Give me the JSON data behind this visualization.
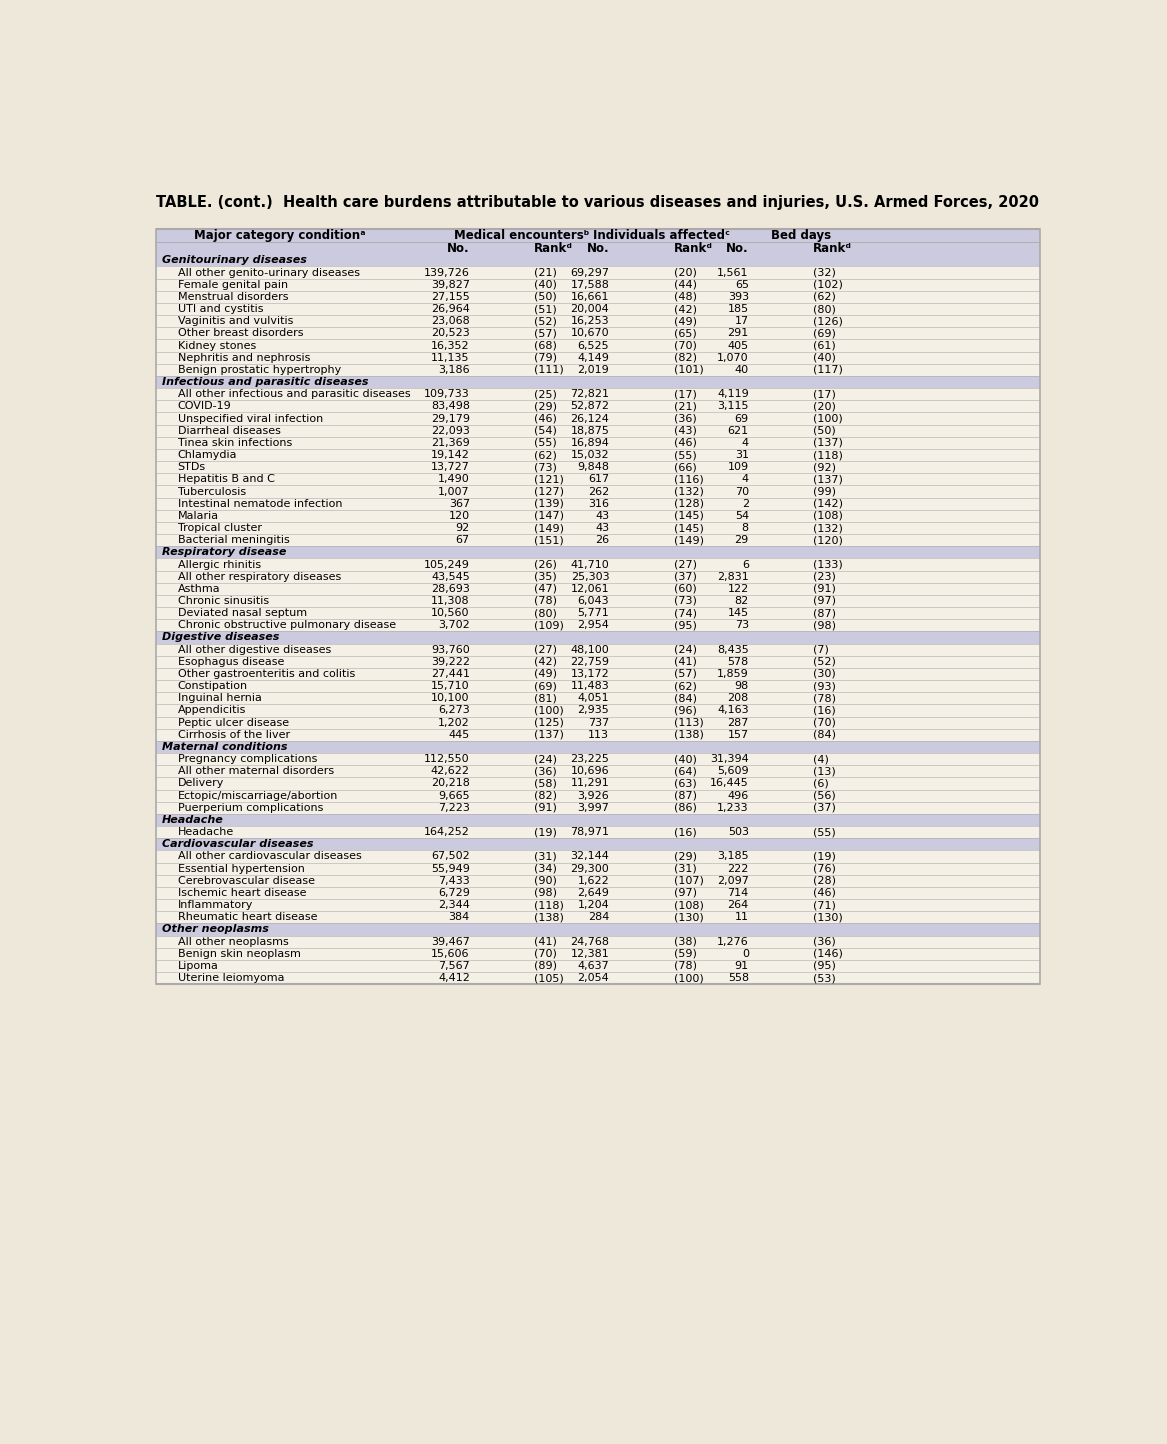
{
  "title": "TABLE. (cont.)  Health care burdens attributable to various diseases and injuries, U.S. Armed Forces, 2020",
  "sections": [
    {
      "header": "Genitourinary diseases",
      "rows": [
        [
          "All other genito-urinary diseases",
          "139,726",
          "(21)",
          "69,297",
          "(20)",
          "1,561",
          "(32)"
        ],
        [
          "Female genital pain",
          "39,827",
          "(40)",
          "17,588",
          "(44)",
          "65",
          "(102)"
        ],
        [
          "Menstrual disorders",
          "27,155",
          "(50)",
          "16,661",
          "(48)",
          "393",
          "(62)"
        ],
        [
          "UTI and cystitis",
          "26,964",
          "(51)",
          "20,004",
          "(42)",
          "185",
          "(80)"
        ],
        [
          "Vaginitis and vulvitis",
          "23,068",
          "(52)",
          "16,253",
          "(49)",
          "17",
          "(126)"
        ],
        [
          "Other breast disorders",
          "20,523",
          "(57)",
          "10,670",
          "(65)",
          "291",
          "(69)"
        ],
        [
          "Kidney stones",
          "16,352",
          "(68)",
          "6,525",
          "(70)",
          "405",
          "(61)"
        ],
        [
          "Nephritis and nephrosis",
          "11,135",
          "(79)",
          "4,149",
          "(82)",
          "1,070",
          "(40)"
        ],
        [
          "Benign prostatic hypertrophy",
          "3,186",
          "(111)",
          "2,019",
          "(101)",
          "40",
          "(117)"
        ]
      ]
    },
    {
      "header": "Infectious and parasitic diseases",
      "rows": [
        [
          "All other infectious and parasitic diseases",
          "109,733",
          "(25)",
          "72,821",
          "(17)",
          "4,119",
          "(17)"
        ],
        [
          "COVID-19",
          "83,498",
          "(29)",
          "52,872",
          "(21)",
          "3,115",
          "(20)"
        ],
        [
          "Unspecified viral infection",
          "29,179",
          "(46)",
          "26,124",
          "(36)",
          "69",
          "(100)"
        ],
        [
          "Diarrheal diseases",
          "22,093",
          "(54)",
          "18,875",
          "(43)",
          "621",
          "(50)"
        ],
        [
          "Tinea skin infections",
          "21,369",
          "(55)",
          "16,894",
          "(46)",
          "4",
          "(137)"
        ],
        [
          "Chlamydia",
          "19,142",
          "(62)",
          "15,032",
          "(55)",
          "31",
          "(118)"
        ],
        [
          "STDs",
          "13,727",
          "(73)",
          "9,848",
          "(66)",
          "109",
          "(92)"
        ],
        [
          "Hepatitis B and C",
          "1,490",
          "(121)",
          "617",
          "(116)",
          "4",
          "(137)"
        ],
        [
          "Tuberculosis",
          "1,007",
          "(127)",
          "262",
          "(132)",
          "70",
          "(99)"
        ],
        [
          "Intestinal nematode infection",
          "367",
          "(139)",
          "316",
          "(128)",
          "2",
          "(142)"
        ],
        [
          "Malaria",
          "120",
          "(147)",
          "43",
          "(145)",
          "54",
          "(108)"
        ],
        [
          "Tropical cluster",
          "92",
          "(149)",
          "43",
          "(145)",
          "8",
          "(132)"
        ],
        [
          "Bacterial meningitis",
          "67",
          "(151)",
          "26",
          "(149)",
          "29",
          "(120)"
        ]
      ]
    },
    {
      "header": "Respiratory disease",
      "rows": [
        [
          "Allergic rhinitis",
          "105,249",
          "(26)",
          "41,710",
          "(27)",
          "6",
          "(133)"
        ],
        [
          "All other respiratory diseases",
          "43,545",
          "(35)",
          "25,303",
          "(37)",
          "2,831",
          "(23)"
        ],
        [
          "Asthma",
          "28,693",
          "(47)",
          "12,061",
          "(60)",
          "122",
          "(91)"
        ],
        [
          "Chronic sinusitis",
          "11,308",
          "(78)",
          "6,043",
          "(73)",
          "82",
          "(97)"
        ],
        [
          "Deviated nasal septum",
          "10,560",
          "(80)",
          "5,771",
          "(74)",
          "145",
          "(87)"
        ],
        [
          "Chronic obstructive pulmonary disease",
          "3,702",
          "(109)",
          "2,954",
          "(95)",
          "73",
          "(98)"
        ]
      ]
    },
    {
      "header": "Digestive diseases",
      "rows": [
        [
          "All other digestive diseases",
          "93,760",
          "(27)",
          "48,100",
          "(24)",
          "8,435",
          "(7)"
        ],
        [
          "Esophagus disease",
          "39,222",
          "(42)",
          "22,759",
          "(41)",
          "578",
          "(52)"
        ],
        [
          "Other gastroenteritis and colitis",
          "27,441",
          "(49)",
          "13,172",
          "(57)",
          "1,859",
          "(30)"
        ],
        [
          "Constipation",
          "15,710",
          "(69)",
          "11,483",
          "(62)",
          "98",
          "(93)"
        ],
        [
          "Inguinal hernia",
          "10,100",
          "(81)",
          "4,051",
          "(84)",
          "208",
          "(78)"
        ],
        [
          "Appendicitis",
          "6,273",
          "(100)",
          "2,935",
          "(96)",
          "4,163",
          "(16)"
        ],
        [
          "Peptic ulcer disease",
          "1,202",
          "(125)",
          "737",
          "(113)",
          "287",
          "(70)"
        ],
        [
          "Cirrhosis of the liver",
          "445",
          "(137)",
          "113",
          "(138)",
          "157",
          "(84)"
        ]
      ]
    },
    {
      "header": "Maternal conditions",
      "rows": [
        [
          "Pregnancy complications",
          "112,550",
          "(24)",
          "23,225",
          "(40)",
          "31,394",
          "(4)"
        ],
        [
          "All other maternal disorders",
          "42,622",
          "(36)",
          "10,696",
          "(64)",
          "5,609",
          "(13)"
        ],
        [
          "Delivery",
          "20,218",
          "(58)",
          "11,291",
          "(63)",
          "16,445",
          "(6)"
        ],
        [
          "Ectopic/miscarriage/abortion",
          "9,665",
          "(82)",
          "3,926",
          "(87)",
          "496",
          "(56)"
        ],
        [
          "Puerperium complications",
          "7,223",
          "(91)",
          "3,997",
          "(86)",
          "1,233",
          "(37)"
        ]
      ]
    },
    {
      "header": "Headache",
      "rows": [
        [
          "Headache",
          "164,252",
          "(19)",
          "78,971",
          "(16)",
          "503",
          "(55)"
        ]
      ]
    },
    {
      "header": "Cardiovascular diseases",
      "rows": [
        [
          "All other cardiovascular diseases",
          "67,502",
          "(31)",
          "32,144",
          "(29)",
          "3,185",
          "(19)"
        ],
        [
          "Essential hypertension",
          "55,949",
          "(34)",
          "29,300",
          "(31)",
          "222",
          "(76)"
        ],
        [
          "Cerebrovascular disease",
          "7,433",
          "(90)",
          "1,622",
          "(107)",
          "2,097",
          "(28)"
        ],
        [
          "Ischemic heart disease",
          "6,729",
          "(98)",
          "2,649",
          "(97)",
          "714",
          "(46)"
        ],
        [
          "Inflammatory",
          "2,344",
          "(118)",
          "1,204",
          "(108)",
          "264",
          "(71)"
        ],
        [
          "Rheumatic heart disease",
          "384",
          "(138)",
          "284",
          "(130)",
          "11",
          "(130)"
        ]
      ]
    },
    {
      "header": "Other neoplasms",
      "rows": [
        [
          "All other neoplasms",
          "39,467",
          "(41)",
          "24,768",
          "(38)",
          "1,276",
          "(36)"
        ],
        [
          "Benign skin neoplasm",
          "15,606",
          "(70)",
          "12,381",
          "(59)",
          "0",
          "(146)"
        ],
        [
          "Lipoma",
          "7,567",
          "(89)",
          "4,637",
          "(78)",
          "91",
          "(95)"
        ],
        [
          "Uterine leiomyoma",
          "4,412",
          "(105)",
          "2,054",
          "(100)",
          "558",
          "(53)"
        ]
      ]
    }
  ],
  "bg_color": "#ede8da",
  "table_bg": "#f5f0e6",
  "header_bg": "#cccade",
  "section_bg": "#cccade",
  "row_bg": "#f5f0e6",
  "border_color": "#aaaaaa",
  "text_color": "#000000",
  "title_fontsize": 10.5,
  "header_fontsize": 8.5,
  "row_fontsize": 8.0,
  "fig_width": 11.67,
  "fig_height": 14.44,
  "dpi": 100
}
